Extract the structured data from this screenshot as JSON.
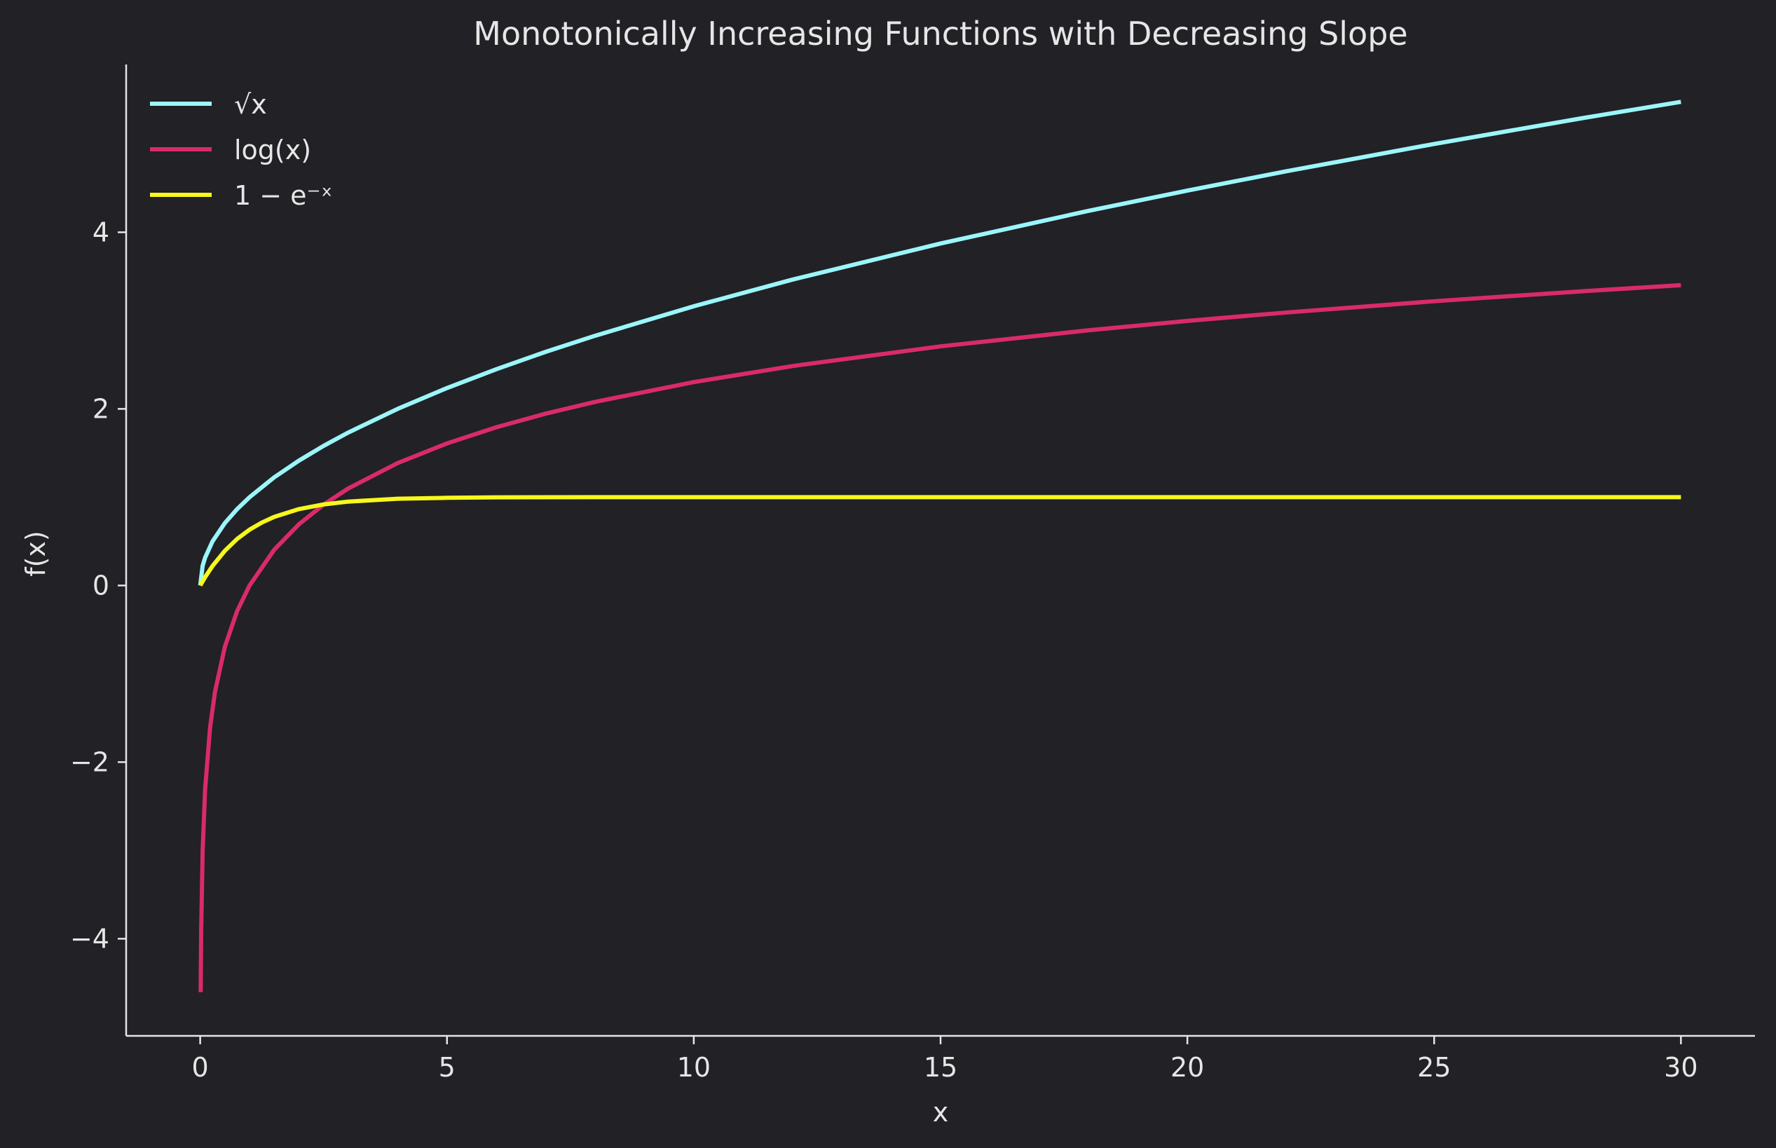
{
  "chart_data": {
    "type": "line",
    "title": "Monotonically Increasing Functions with Decreasing Slope",
    "xlabel": "x",
    "ylabel": "f(x)",
    "xlim": [
      -1.5,
      31.5
    ],
    "ylim": [
      -5.1,
      5.9
    ],
    "x_ticks": [
      0,
      5,
      10,
      15,
      20,
      25,
      30
    ],
    "x_tick_labels": [
      "0",
      "5",
      "10",
      "15",
      "20",
      "25",
      "30"
    ],
    "y_ticks": [
      -4,
      -2,
      0,
      2,
      4
    ],
    "y_tick_labels": [
      "−4",
      "−2",
      "0",
      "2",
      "4"
    ],
    "grid": false,
    "legend_position": "upper-left",
    "background_color": "#212126",
    "axis_color": "#e6e6e6",
    "series": [
      {
        "legend_label": "√x",
        "color": "#9bf6fa",
        "x": [
          0,
          0.05,
          0.1,
          0.25,
          0.5,
          0.75,
          1,
          1.5,
          2,
          2.5,
          3,
          4,
          5,
          6,
          7,
          8,
          10,
          12,
          15,
          18,
          20,
          22,
          25,
          28,
          30
        ],
        "y": [
          0,
          0.224,
          0.316,
          0.5,
          0.707,
          0.866,
          1,
          1.225,
          1.414,
          1.581,
          1.732,
          2,
          2.236,
          2.449,
          2.646,
          2.828,
          3.162,
          3.464,
          3.873,
          4.243,
          4.472,
          4.69,
          5,
          5.292,
          5.477
        ]
      },
      {
        "legend_label": "log(x)",
        "color": "#d92b68",
        "x": [
          0.01,
          0.02,
          0.05,
          0.1,
          0.2,
          0.3,
          0.5,
          0.75,
          1,
          1.5,
          2,
          2.5,
          3,
          4,
          5,
          6,
          7,
          8,
          10,
          12,
          15,
          18,
          20,
          22,
          25,
          28,
          30
        ],
        "y": [
          -4.605,
          -3.912,
          -2.996,
          -2.303,
          -1.609,
          -1.204,
          -0.693,
          -0.288,
          0,
          0.405,
          0.693,
          0.916,
          1.099,
          1.386,
          1.609,
          1.792,
          1.946,
          2.079,
          2.303,
          2.485,
          2.708,
          2.89,
          2.996,
          3.091,
          3.219,
          3.332,
          3.401
        ]
      },
      {
        "legend_label": "1 − e⁻ˣ",
        "color": "#f7f71c",
        "x": [
          0,
          0.1,
          0.25,
          0.5,
          0.75,
          1,
          1.25,
          1.5,
          2,
          2.5,
          3,
          4,
          5,
          6,
          8,
          10,
          15,
          20,
          25,
          30
        ],
        "y": [
          0,
          0.095,
          0.221,
          0.393,
          0.528,
          0.632,
          0.713,
          0.777,
          0.865,
          0.918,
          0.95,
          0.982,
          0.993,
          0.998,
          1.0,
          1.0,
          1.0,
          1.0,
          1.0,
          1.0
        ]
      }
    ]
  }
}
